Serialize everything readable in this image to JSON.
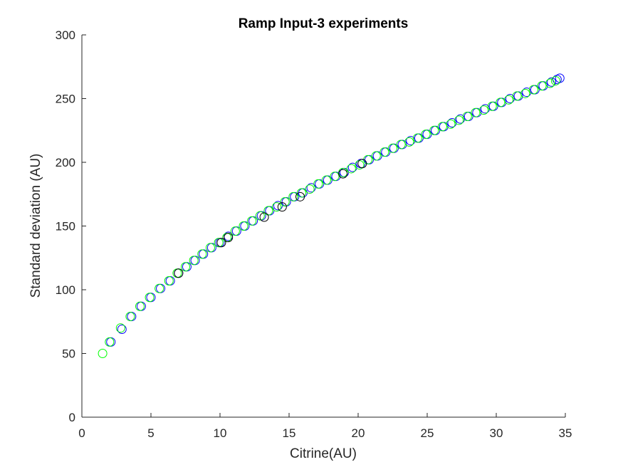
{
  "chart_data": {
    "type": "scatter",
    "title": "Ramp Input-3 experiments",
    "xlabel": "Citrine(AU)",
    "ylabel": "Standard deviation (AU)",
    "xlim": [
      0,
      35
    ],
    "ylim": [
      0,
      300
    ],
    "xticks": [
      "0",
      "5",
      "10",
      "15",
      "20",
      "25",
      "30",
      "35"
    ],
    "yticks": [
      "0",
      "50",
      "100",
      "150",
      "200",
      "250",
      "300"
    ],
    "grid": false,
    "marker": "open-circle",
    "colors": {
      "blue": "#0000ff",
      "green": "#00ff00",
      "black": "#000000",
      "axis": "#262626"
    },
    "series": [
      {
        "color": "blue",
        "x": [
          2.1,
          2.9,
          3.6,
          4.3,
          5.0,
          5.7,
          6.4,
          7.0,
          7.6,
          8.2,
          8.8,
          9.4,
          10.0,
          10.6,
          11.2,
          11.8,
          12.4,
          13.0,
          13.6,
          14.2,
          14.8,
          15.4,
          16.0,
          16.6,
          17.2,
          17.8,
          18.4,
          19.0,
          19.6,
          20.2,
          20.8,
          21.4,
          22.0,
          22.6,
          23.2,
          23.8,
          24.4,
          25.0,
          25.6,
          26.2,
          26.8,
          27.4,
          28.0,
          28.6,
          29.2,
          29.8,
          30.4,
          31.0,
          31.6,
          32.2,
          32.8,
          33.4,
          34.0,
          34.4,
          34.6
        ],
        "y": [
          59,
          69,
          79,
          87,
          94,
          101,
          107,
          113,
          118,
          123,
          128,
          133,
          137,
          142,
          146,
          150,
          154,
          158,
          162,
          166,
          169,
          173,
          176,
          180,
          183,
          186,
          189,
          192,
          196,
          199,
          202,
          205,
          208,
          211,
          214,
          217,
          219,
          222,
          225,
          228,
          231,
          234,
          236,
          239,
          242,
          244,
          247,
          250,
          252,
          255,
          257,
          260,
          263,
          265,
          266
        ]
      },
      {
        "color": "green",
        "x": [
          1.5,
          2.0,
          2.8,
          3.5,
          4.2,
          4.9,
          5.6,
          6.3,
          6.9,
          7.5,
          8.1,
          8.7,
          9.3,
          9.9,
          10.5,
          11.1,
          11.7,
          12.3,
          12.9,
          13.5,
          14.1,
          14.7,
          15.3,
          15.9,
          16.5,
          17.1,
          17.7,
          18.3,
          18.9,
          19.5,
          20.1,
          20.7,
          21.3,
          21.9,
          22.5,
          23.1,
          23.7,
          24.3,
          24.9,
          25.5,
          26.1,
          26.7,
          27.3,
          27.9,
          28.5,
          29.1,
          29.7,
          30.3,
          30.9,
          31.5,
          32.1,
          32.7,
          33.3,
          33.9,
          34.3
        ],
        "y": [
          50,
          59,
          70,
          79,
          87,
          94,
          101,
          107,
          113,
          118,
          123,
          128,
          133,
          137,
          141,
          146,
          150,
          154,
          158,
          162,
          165,
          169,
          173,
          176,
          179,
          183,
          186,
          189,
          192,
          195,
          198,
          202,
          205,
          208,
          211,
          214,
          216,
          219,
          222,
          225,
          228,
          230,
          233,
          236,
          239,
          241,
          244,
          247,
          249,
          252,
          254,
          257,
          260,
          262,
          264
        ]
      },
      {
        "color": "black",
        "x": [
          7.0,
          10.1,
          10.6,
          13.2,
          14.5,
          15.8,
          18.9,
          20.3
        ],
        "y": [
          113,
          137,
          141,
          157,
          165,
          173,
          191,
          199
        ]
      }
    ]
  }
}
